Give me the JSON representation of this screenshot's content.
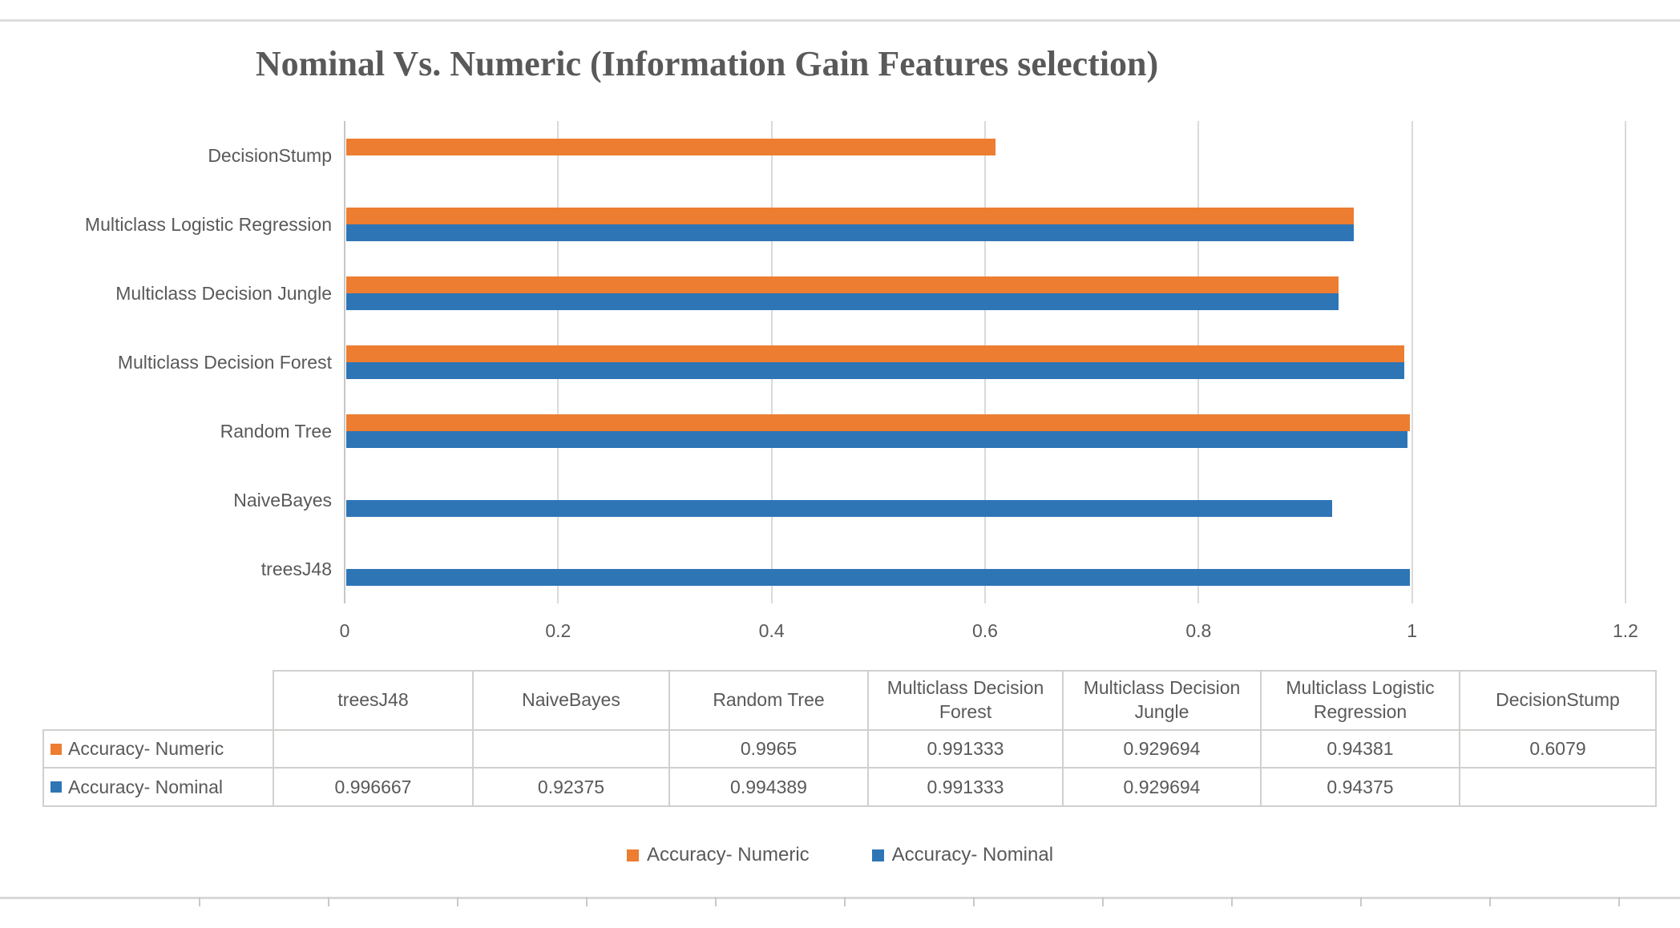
{
  "title": "Nominal Vs. Numeric (Information Gain Features selection)",
  "chart_data": {
    "type": "bar",
    "orientation": "horizontal",
    "title": "Nominal Vs. Numeric (Information Gain Features selection)",
    "categories_top_to_bottom": [
      "DecisionStump",
      "Multiclass Logistic Regression",
      "Multiclass Decision Jungle",
      "Multiclass Decision Forest",
      "Random Tree",
      "NaiveBayes",
      "treesJ48"
    ],
    "series": [
      {
        "name": "Accuracy- Numeric",
        "color": "#ED7D31",
        "values_top_to_bottom": [
          0.6079,
          0.94381,
          0.929694,
          0.991333,
          0.9965,
          null,
          null
        ]
      },
      {
        "name": "Accuracy- Nominal",
        "color": "#2E75B6",
        "values_top_to_bottom": [
          null,
          0.94375,
          0.929694,
          0.991333,
          0.994389,
          0.92375,
          0.996667
        ]
      }
    ],
    "x_axis": {
      "min": 0,
      "max": 1.2,
      "ticks": [
        0,
        0.2,
        0.4,
        0.6,
        0.8,
        1,
        1.2
      ],
      "tick_labels": [
        "0",
        "0.2",
        "0.4",
        "0.6",
        "0.8",
        "1",
        "1.2"
      ]
    },
    "grid": true,
    "legend_position": "bottom"
  },
  "data_table": {
    "columns": [
      "treesJ48",
      "NaiveBayes",
      "Random Tree",
      "Multiclass Decision Forest",
      "Multiclass Decision Jungle",
      "Multiclass Logistic Regression",
      "DecisionStump"
    ],
    "rows": [
      {
        "label": "Accuracy- Numeric",
        "swatch_color": "#ED7D31",
        "values": [
          "",
          "",
          "0.9965",
          "0.991333",
          "0.929694",
          "0.94381",
          "0.6079"
        ]
      },
      {
        "label": "Accuracy- Nominal",
        "swatch_color": "#2E75B6",
        "values": [
          "0.996667",
          "0.92375",
          "0.994389",
          "0.991333",
          "0.929694",
          "0.94375",
          ""
        ]
      }
    ]
  },
  "legend": {
    "items": [
      {
        "label": "Accuracy- Numeric",
        "color": "#ED7D31"
      },
      {
        "label": "Accuracy- Nominal",
        "color": "#2E75B6"
      }
    ]
  },
  "colors": {
    "series_numeric": "#ED7D31",
    "series_nominal": "#2E75B6",
    "text": "#595959",
    "gridline": "#DADADA",
    "table_border": "#D2D0CE",
    "divider": "#DCDCDC"
  }
}
